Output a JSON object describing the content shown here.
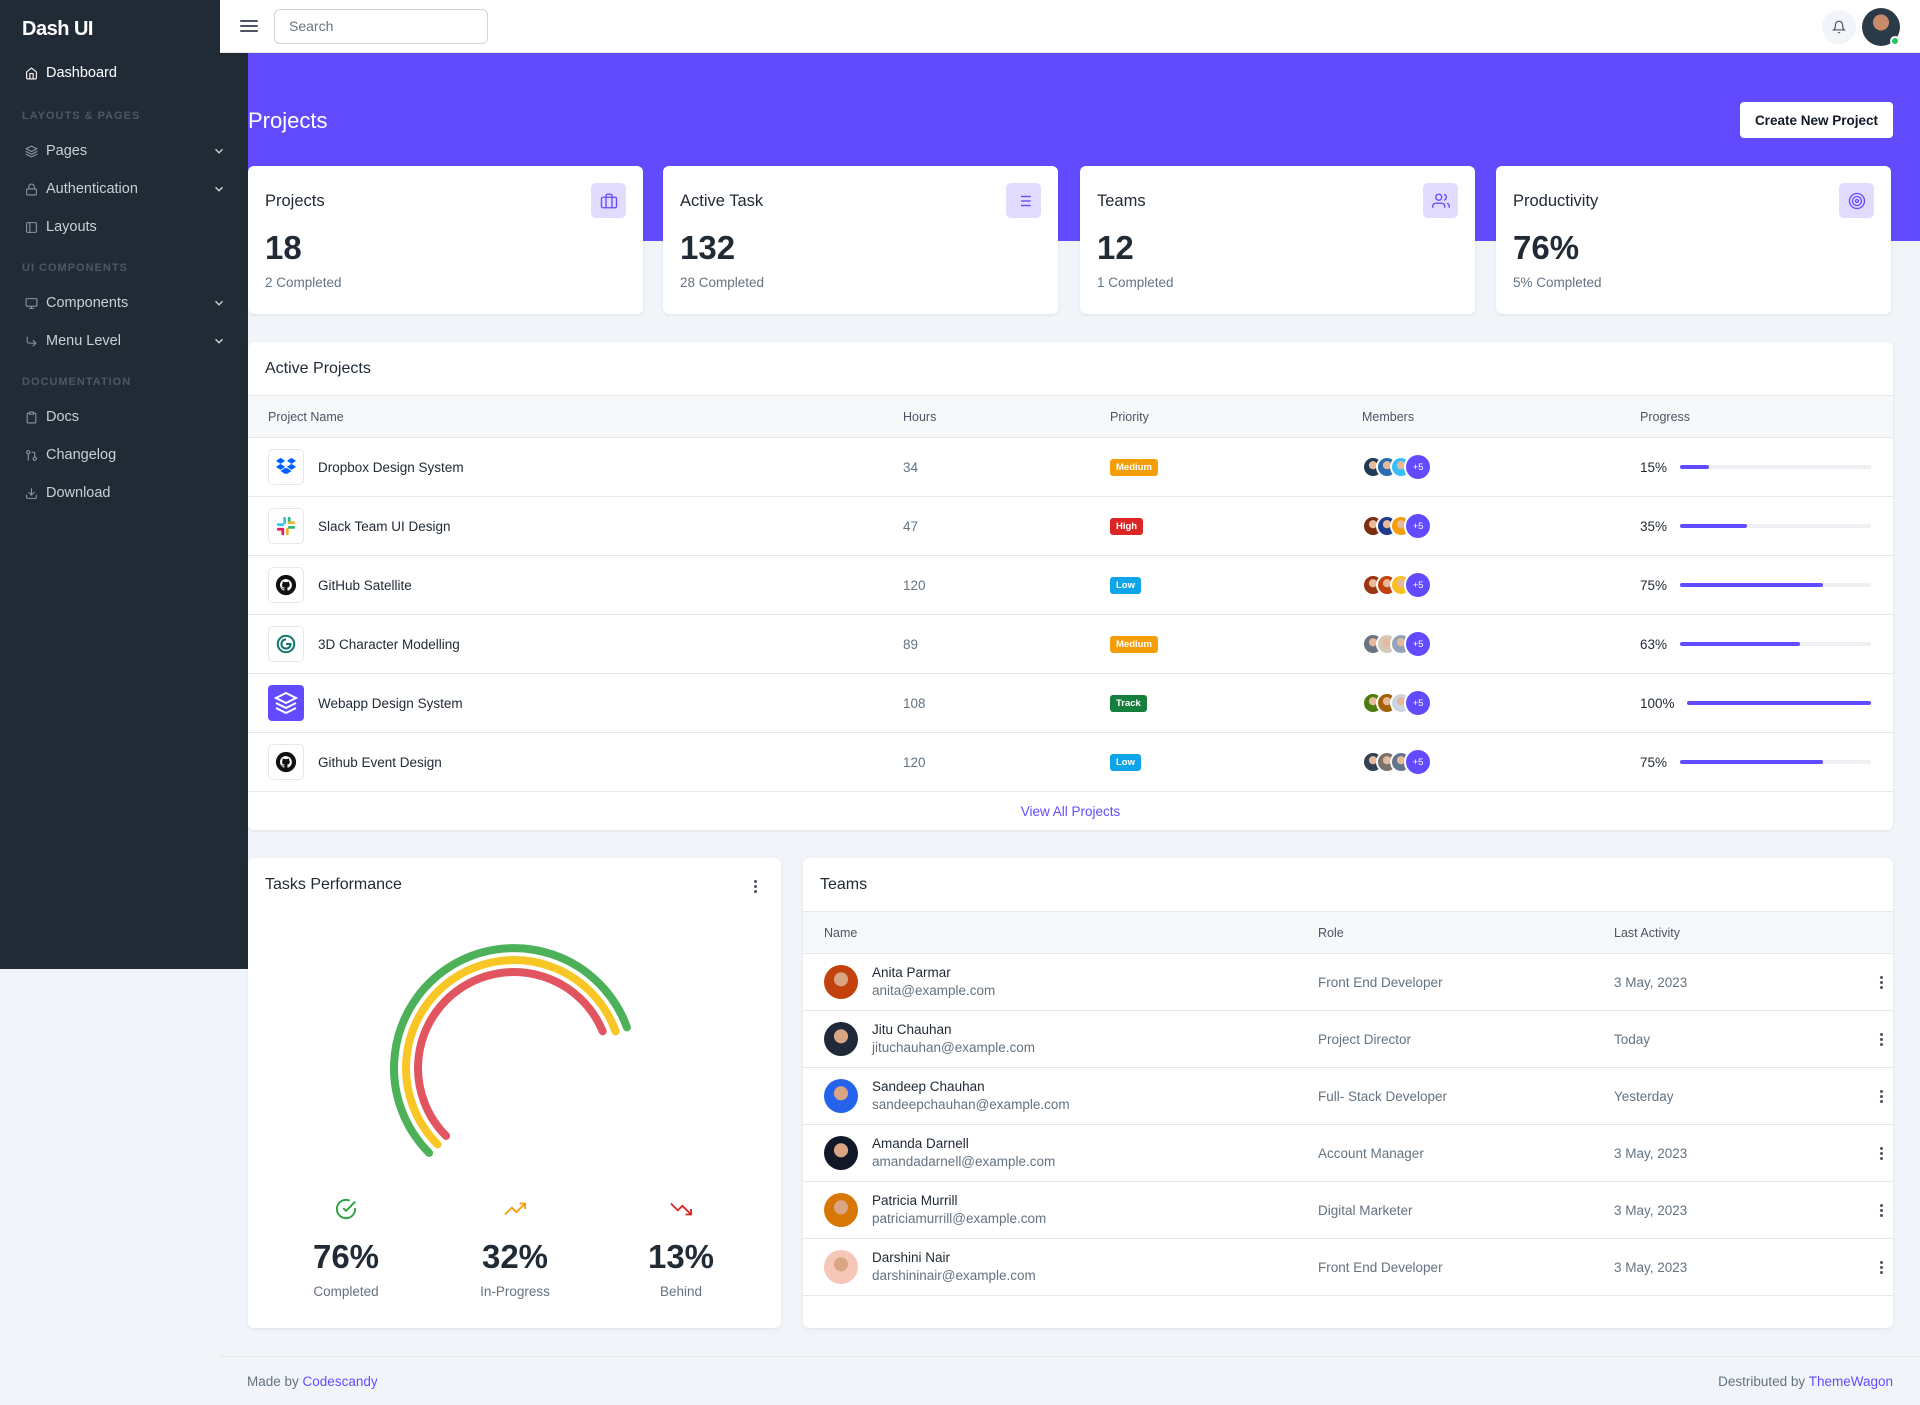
{
  "brand": "Dash UI",
  "sidebar": {
    "items": [
      {
        "label": "Dashboard",
        "icon": "home-icon"
      },
      {
        "heading": "LAYOUTS & PAGES"
      },
      {
        "label": "Pages",
        "icon": "layers-icon",
        "chevron": true
      },
      {
        "label": "Authentication",
        "icon": "lock-icon",
        "chevron": true
      },
      {
        "label": "Layouts",
        "icon": "sidebar-layout-icon"
      },
      {
        "heading": "UI COMPONENTS"
      },
      {
        "label": "Components",
        "icon": "monitor-icon",
        "chevron": true
      },
      {
        "label": "Menu Level",
        "icon": "corner-arrow-icon",
        "chevron": true
      },
      {
        "heading": "DOCUMENTATION"
      },
      {
        "label": "Docs",
        "icon": "clipboard-icon"
      },
      {
        "label": "Changelog",
        "icon": "git-pull-icon"
      },
      {
        "label": "Download",
        "icon": "download-icon"
      }
    ]
  },
  "topbar": {
    "search_placeholder": "Search"
  },
  "page": {
    "title": "Projects",
    "create_button": "Create New Project"
  },
  "stats": [
    {
      "title": "Projects",
      "value": "18",
      "sub": "2 Completed",
      "icon": "briefcase-icon"
    },
    {
      "title": "Active Task",
      "value": "132",
      "sub": "28 Completed",
      "icon": "list-icon"
    },
    {
      "title": "Teams",
      "value": "12",
      "sub": "1 Completed",
      "icon": "users-icon"
    },
    {
      "title": "Productivity",
      "value": "76%",
      "sub": "5% Completed",
      "icon": "target-icon"
    }
  ],
  "active_projects": {
    "title": "Active Projects",
    "columns": [
      "Project Name",
      "Hours",
      "Priority",
      "Members",
      "Progress"
    ],
    "rows": [
      {
        "name": "Dropbox Design System",
        "hours": "34",
        "priority": "Medium",
        "priority_color": "#f59e0b",
        "progress_label": "15%",
        "progress": 0.15,
        "logo": "dropbox-logo-icon",
        "more": "+5"
      },
      {
        "name": "Slack Team UI Design",
        "hours": "47",
        "priority": "High",
        "priority_color": "#dc2626",
        "progress_label": "35%",
        "progress": 0.35,
        "logo": "slack-logo-icon",
        "more": "+5"
      },
      {
        "name": "GitHub Satellite",
        "hours": "120",
        "priority": "Low",
        "priority_color": "#0ea5e9",
        "progress_label": "75%",
        "progress": 0.75,
        "logo": "github-logo-icon",
        "more": "+5"
      },
      {
        "name": "3D Character Modelling",
        "hours": "89",
        "priority": "Medium",
        "priority_color": "#f59e0b",
        "progress_label": "63%",
        "progress": 0.63,
        "logo": "swirl-logo-icon",
        "more": "+5"
      },
      {
        "name": "Webapp Design System",
        "hours": "108",
        "priority": "Track",
        "priority_color": "#15803d",
        "progress_label": "100%",
        "progress": 1.0,
        "logo": "layers-logo-icon",
        "more": "+5"
      },
      {
        "name": "Github Event Design",
        "hours": "120",
        "priority": "Low",
        "priority_color": "#0ea5e9",
        "progress_label": "75%",
        "progress": 0.75,
        "logo": "github-logo-icon",
        "more": "+5"
      }
    ],
    "view_all": "View All Projects"
  },
  "tasks_performance": {
    "title": "Tasks Performance",
    "items": [
      {
        "value": "76%",
        "label": "Completed",
        "icon": "check-circle-icon",
        "color": "#22a03a"
      },
      {
        "value": "32%",
        "label": "In-Progress",
        "icon": "trending-up-icon",
        "color": "#f59e0b"
      },
      {
        "value": "13%",
        "label": "Behind",
        "icon": "trending-down-icon",
        "color": "#dc2626"
      }
    ],
    "gauge_colors": {
      "completed": "#4cb158",
      "in_progress": "#f8c725",
      "behind": "#e0555f"
    }
  },
  "teams": {
    "title": "Teams",
    "columns": [
      "Name",
      "Role",
      "Last Activity"
    ],
    "rows": [
      {
        "name": "Anita Parmar",
        "email": "anita@example.com",
        "role": "Front End Developer",
        "activity": "3 May, 2023"
      },
      {
        "name": "Jitu Chauhan",
        "email": "jituchauhan@example.com",
        "role": "Project Director",
        "activity": "Today"
      },
      {
        "name": "Sandeep Chauhan",
        "email": "sandeepchauhan@example.com",
        "role": "Full- Stack Developer",
        "activity": "Yesterday"
      },
      {
        "name": "Amanda Darnell",
        "email": "amandadarnell@example.com",
        "role": "Account Manager",
        "activity": "3 May, 2023"
      },
      {
        "name": "Patricia Murrill",
        "email": "patriciamurrill@example.com",
        "role": "Digital Marketer",
        "activity": "3 May, 2023"
      },
      {
        "name": "Darshini Nair",
        "email": "darshininair@example.com",
        "role": "Front End Developer",
        "activity": "3 May, 2023"
      }
    ]
  },
  "footer": {
    "made_by_prefix": "Made by",
    "made_by_link": "Codescandy",
    "distributed_prefix": "Destributed by",
    "distributed_link": "ThemeWagon"
  },
  "accent_color": "#624bff"
}
